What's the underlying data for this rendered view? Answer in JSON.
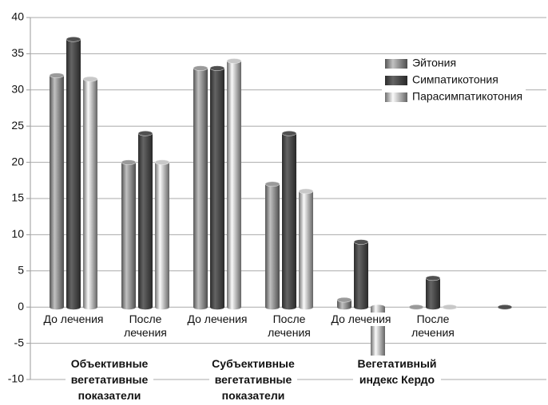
{
  "chart_data": {
    "type": "bar",
    "categories": [
      "До лечения",
      "После лечения",
      "До лечения",
      "После лечения",
      "До лечения",
      "После лечения",
      null
    ],
    "groups": [
      "Объективные вегетативные показатели",
      "Субъективные вегетативные показатели",
      "Вегетативный индекс Кердо"
    ],
    "series": [
      {
        "name": "Эйтония",
        "color": "#9a9a9a",
        "values": [
          32,
          20,
          33,
          17,
          1,
          0,
          null
        ]
      },
      {
        "name": "Симпатикотония",
        "color": "#505050",
        "values": [
          37,
          24,
          33,
          24,
          9,
          4,
          0
        ]
      },
      {
        "name": "Парасимпатикотония",
        "color": "#c8c8c8",
        "values": [
          31.5,
          20,
          34,
          16,
          -7,
          0,
          null
        ]
      }
    ],
    "ylim": [
      -10,
      40
    ],
    "yticks": [
      -10,
      -5,
      0,
      5,
      10,
      15,
      20,
      25,
      30,
      35,
      40
    ],
    "grid": true,
    "legend": "upper right"
  }
}
